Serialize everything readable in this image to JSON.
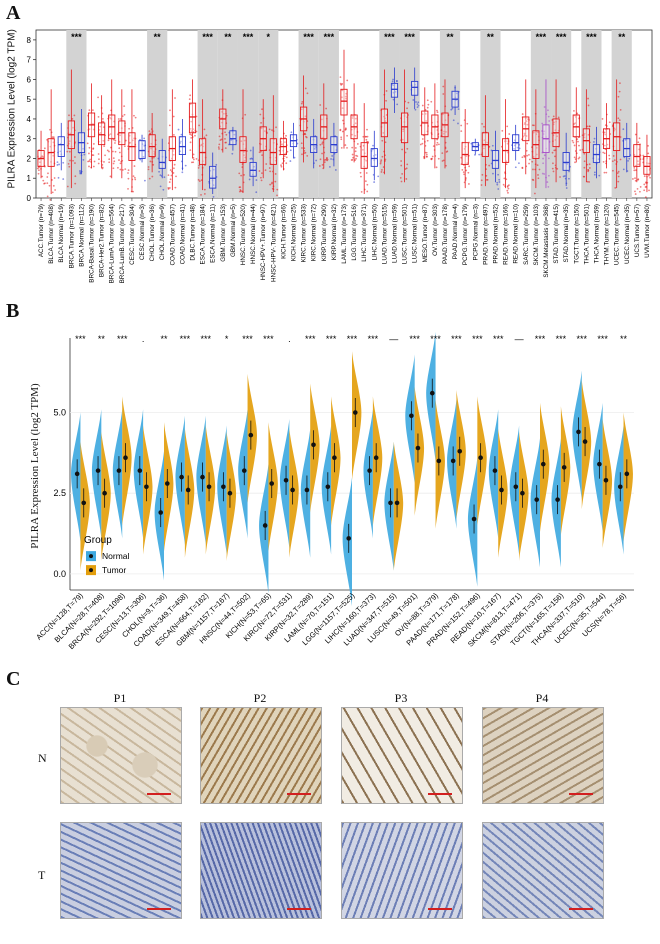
{
  "panelA": {
    "letter": "A",
    "ylabel": "PILRA Expression Level (log2 TPM)",
    "yticks": [
      0,
      1,
      2,
      3,
      4,
      5,
      6,
      7,
      8
    ],
    "groups": [
      {
        "label": "ACC.Tumor (n=79)",
        "color": "#e41a1c",
        "median": 2.0,
        "q1": 1.6,
        "q3": 2.4,
        "lo": 1.0,
        "hi": 3.4,
        "sig": ""
      },
      {
        "label": "BLCA.Tumor (n=408)",
        "color": "#e41a1c",
        "median": 2.3,
        "q1": 1.6,
        "q3": 3.0,
        "lo": 0.2,
        "hi": 5.5,
        "sig": ""
      },
      {
        "label": "BLCA.Normal (n=19)",
        "color": "#2b3ccf",
        "median": 2.7,
        "q1": 2.1,
        "q3": 3.1,
        "lo": 1.4,
        "hi": 3.8,
        "sig": ""
      },
      {
        "label": "BRCA.Tumor (n=1093)",
        "color": "#e41a1c",
        "median": 3.2,
        "q1": 2.5,
        "q3": 3.9,
        "lo": 0.5,
        "hi": 6.5,
        "sig": "***"
      },
      {
        "label": "BRCA.Normal (n=112)",
        "color": "#2b3ccf",
        "median": 2.8,
        "q1": 2.3,
        "q3": 3.3,
        "lo": 1.2,
        "hi": 4.5,
        "sig": ""
      },
      {
        "label": "BRCA-Basal.Tumor (n=190)",
        "color": "#e41a1c",
        "median": 3.7,
        "q1": 3.1,
        "q3": 4.3,
        "lo": 1.5,
        "hi": 5.8,
        "sig": ""
      },
      {
        "label": "BRCA-Her2.Tumor (n=82)",
        "color": "#e41a1c",
        "median": 3.2,
        "q1": 2.7,
        "q3": 3.8,
        "lo": 1.5,
        "hi": 5.2,
        "sig": ""
      },
      {
        "label": "BRCA-LumA.Tumor (n=564)",
        "color": "#e41a1c",
        "median": 3.6,
        "q1": 3.0,
        "q3": 4.2,
        "lo": 1.0,
        "hi": 6.0,
        "sig": ""
      },
      {
        "label": "BRCA-LumB.Tumor (n=217)",
        "color": "#e41a1c",
        "median": 3.3,
        "q1": 2.7,
        "q3": 3.9,
        "lo": 1.0,
        "hi": 5.5,
        "sig": ""
      },
      {
        "label": "CESC.Tumor (n=304)",
        "color": "#e41a1c",
        "median": 2.6,
        "q1": 1.9,
        "q3": 3.3,
        "lo": 0.3,
        "hi": 5.5,
        "sig": ""
      },
      {
        "label": "CESC.Normal (n=3)",
        "color": "#2b3ccf",
        "median": 2.4,
        "q1": 2.0,
        "q3": 2.9,
        "lo": 1.8,
        "hi": 3.2,
        "sig": ""
      },
      {
        "label": "CHOL.Tumor (n=36)",
        "color": "#e41a1c",
        "median": 2.6,
        "q1": 2.1,
        "q3": 3.2,
        "lo": 1.3,
        "hi": 4.3,
        "sig": "**"
      },
      {
        "label": "CHOL.Normal (n=9)",
        "color": "#2b3ccf",
        "median": 1.8,
        "q1": 1.5,
        "q3": 2.4,
        "lo": 1.0,
        "hi": 3.0,
        "sig": ""
      },
      {
        "label": "COAD.Tumor (n=457)",
        "color": "#e41a1c",
        "median": 2.5,
        "q1": 1.9,
        "q3": 3.1,
        "lo": 0.4,
        "hi": 5.5,
        "sig": ""
      },
      {
        "label": "COAD.Normal (n=41)",
        "color": "#2b3ccf",
        "median": 2.6,
        "q1": 2.2,
        "q3": 3.1,
        "lo": 1.4,
        "hi": 4.0,
        "sig": ""
      },
      {
        "label": "DLBC.Tumor (n=48)",
        "color": "#e41a1c",
        "median": 4.1,
        "q1": 3.3,
        "q3": 4.8,
        "lo": 2.0,
        "hi": 6.0,
        "sig": ""
      },
      {
        "label": "ESCA.Tumor (n=184)",
        "color": "#e41a1c",
        "median": 2.3,
        "q1": 1.7,
        "q3": 3.0,
        "lo": 0.4,
        "hi": 5.0,
        "sig": "***"
      },
      {
        "label": "ESCA.Normal (n=11)",
        "color": "#2b3ccf",
        "median": 1.0,
        "q1": 0.5,
        "q3": 1.6,
        "lo": 0.2,
        "hi": 2.3,
        "sig": ""
      },
      {
        "label": "GBM.Tumor (n=153)",
        "color": "#e41a1c",
        "median": 4.0,
        "q1": 3.5,
        "q3": 4.5,
        "lo": 2.3,
        "hi": 5.5,
        "sig": "**"
      },
      {
        "label": "GBM.Normal (n=5)",
        "color": "#2b3ccf",
        "median": 3.0,
        "q1": 2.7,
        "q3": 3.4,
        "lo": 2.4,
        "hi": 3.6,
        "sig": ""
      },
      {
        "label": "HNSC.Tumor (n=520)",
        "color": "#e41a1c",
        "median": 2.4,
        "q1": 1.8,
        "q3": 3.1,
        "lo": 0.3,
        "hi": 5.5,
        "sig": "***"
      },
      {
        "label": "HNSC.Normal (n=44)",
        "color": "#2b3ccf",
        "median": 1.4,
        "q1": 1.1,
        "q3": 1.8,
        "lo": 0.6,
        "hi": 2.6,
        "sig": ""
      },
      {
        "label": "HNSC-HPV+.Tumor (n=97)",
        "color": "#e41a1c",
        "median": 3.0,
        "q1": 2.4,
        "q3": 3.6,
        "lo": 1.0,
        "hi": 5.0,
        "sig": "*"
      },
      {
        "label": "HNSC-HPV-.Tumor (n=421)",
        "color": "#e41a1c",
        "median": 2.3,
        "q1": 1.7,
        "q3": 3.0,
        "lo": 0.3,
        "hi": 5.2,
        "sig": ""
      },
      {
        "label": "KICH.Tumor (n=66)",
        "color": "#e41a1c",
        "median": 2.6,
        "q1": 2.2,
        "q3": 3.0,
        "lo": 1.4,
        "hi": 3.9,
        "sig": ""
      },
      {
        "label": "KICH.Normal (n=25)",
        "color": "#2b3ccf",
        "median": 2.9,
        "q1": 2.6,
        "q3": 3.2,
        "lo": 2.0,
        "hi": 3.8,
        "sig": ""
      },
      {
        "label": "KIRC.Tumor (n=533)",
        "color": "#e41a1c",
        "median": 4.0,
        "q1": 3.4,
        "q3": 4.6,
        "lo": 1.8,
        "hi": 6.2,
        "sig": "***"
      },
      {
        "label": "KIRC.Normal (n=72)",
        "color": "#2b3ccf",
        "median": 2.7,
        "q1": 2.3,
        "q3": 3.1,
        "lo": 1.5,
        "hi": 4.0,
        "sig": ""
      },
      {
        "label": "KIRP.Tumor (n=290)",
        "color": "#e41a1c",
        "median": 3.6,
        "q1": 3.0,
        "q3": 4.2,
        "lo": 1.5,
        "hi": 5.8,
        "sig": "***"
      },
      {
        "label": "KIRP.Normal (n=32)",
        "color": "#2b3ccf",
        "median": 2.7,
        "q1": 2.3,
        "q3": 3.1,
        "lo": 1.6,
        "hi": 3.8,
        "sig": ""
      },
      {
        "label": "LAML.Tumor (n=173)",
        "color": "#e41a1c",
        "median": 4.9,
        "q1": 4.2,
        "q3": 5.5,
        "lo": 2.5,
        "hi": 7.5,
        "sig": ""
      },
      {
        "label": "LGG.Tumor (n=516)",
        "color": "#e41a1c",
        "median": 3.6,
        "q1": 3.0,
        "q3": 4.2,
        "lo": 1.8,
        "hi": 5.8,
        "sig": ""
      },
      {
        "label": "LIHC.Tumor (n=371)",
        "color": "#e41a1c",
        "median": 2.1,
        "q1": 1.5,
        "q3": 2.8,
        "lo": 0.2,
        "hi": 4.8,
        "sig": ""
      },
      {
        "label": "LIHC.Normal (n=50)",
        "color": "#2b3ccf",
        "median": 2.0,
        "q1": 1.6,
        "q3": 2.5,
        "lo": 0.9,
        "hi": 3.4,
        "sig": ""
      },
      {
        "label": "LUAD.Tumor (n=515)",
        "color": "#e41a1c",
        "median": 3.8,
        "q1": 3.1,
        "q3": 4.5,
        "lo": 1.2,
        "hi": 6.5,
        "sig": "***"
      },
      {
        "label": "LUAD.Normal (n=59)",
        "color": "#2b3ccf",
        "median": 5.5,
        "q1": 5.1,
        "q3": 5.8,
        "lo": 4.3,
        "hi": 6.6,
        "sig": ""
      },
      {
        "label": "LUSC.Tumor (n=501)",
        "color": "#e41a1c",
        "median": 3.6,
        "q1": 2.8,
        "q3": 4.3,
        "lo": 0.8,
        "hi": 6.5,
        "sig": "***"
      },
      {
        "label": "LUSC.Normal (n=51)",
        "color": "#2b3ccf",
        "median": 5.6,
        "q1": 5.2,
        "q3": 5.9,
        "lo": 4.5,
        "hi": 6.6,
        "sig": ""
      },
      {
        "label": "MESO.Tumor (n=87)",
        "color": "#e41a1c",
        "median": 3.8,
        "q1": 3.2,
        "q3": 4.4,
        "lo": 2.0,
        "hi": 5.6,
        "sig": ""
      },
      {
        "label": "OV.Tumor (n=303)",
        "color": "#e41a1c",
        "median": 3.6,
        "q1": 3.0,
        "q3": 4.2,
        "lo": 1.5,
        "hi": 5.8,
        "sig": ""
      },
      {
        "label": "PAAD.Tumor (n=178)",
        "color": "#e41a1c",
        "median": 3.7,
        "q1": 3.1,
        "q3": 4.3,
        "lo": 1.5,
        "hi": 6.0,
        "sig": "**"
      },
      {
        "label": "PAAD.Normal (n=4)",
        "color": "#2b3ccf",
        "median": 5.0,
        "q1": 4.6,
        "q3": 5.4,
        "lo": 4.2,
        "hi": 5.7,
        "sig": ""
      },
      {
        "label": "PCPG.Tumor (n=179)",
        "color": "#e41a1c",
        "median": 2.2,
        "q1": 1.7,
        "q3": 2.8,
        "lo": 0.5,
        "hi": 4.5,
        "sig": ""
      },
      {
        "label": "PCPG.Normal (n=3)",
        "color": "#2b3ccf",
        "median": 2.6,
        "q1": 2.4,
        "q3": 2.8,
        "lo": 2.2,
        "hi": 3.0,
        "sig": ""
      },
      {
        "label": "PRAD.Tumor (n=497)",
        "color": "#e41a1c",
        "median": 2.7,
        "q1": 2.1,
        "q3": 3.3,
        "lo": 0.6,
        "hi": 5.2,
        "sig": "**"
      },
      {
        "label": "PRAD.Normal (n=52)",
        "color": "#2b3ccf",
        "median": 1.9,
        "q1": 1.5,
        "q3": 2.4,
        "lo": 0.8,
        "hi": 3.4,
        "sig": ""
      },
      {
        "label": "READ.Tumor (n=166)",
        "color": "#e41a1c",
        "median": 2.4,
        "q1": 1.8,
        "q3": 3.0,
        "lo": 0.5,
        "hi": 5.0,
        "sig": ""
      },
      {
        "label": "READ.Normal (n=10)",
        "color": "#2b3ccf",
        "median": 2.8,
        "q1": 2.4,
        "q3": 3.2,
        "lo": 1.9,
        "hi": 3.7,
        "sig": ""
      },
      {
        "label": "SARC.Tumor (n=259)",
        "color": "#e41a1c",
        "median": 3.5,
        "q1": 2.9,
        "q3": 4.1,
        "lo": 1.2,
        "hi": 6.0,
        "sig": ""
      },
      {
        "label": "SKCM.Tumor (n=103)",
        "color": "#e41a1c",
        "median": 2.7,
        "q1": 2.0,
        "q3": 3.4,
        "lo": 0.5,
        "hi": 5.5,
        "sig": "***"
      },
      {
        "label": "SKCM.Metastasis (n=368)",
        "color": "#a64ac9",
        "median": 3.0,
        "q1": 2.3,
        "q3": 3.7,
        "lo": 0.5,
        "hi": 6.0,
        "sig": ""
      },
      {
        "label": "STAD.Tumor (n=415)",
        "color": "#e41a1c",
        "median": 3.3,
        "q1": 2.6,
        "q3": 4.0,
        "lo": 0.8,
        "hi": 6.0,
        "sig": "***"
      },
      {
        "label": "STAD.Normal (n=35)",
        "color": "#2b3ccf",
        "median": 1.8,
        "q1": 1.4,
        "q3": 2.3,
        "lo": 0.6,
        "hi": 3.3,
        "sig": ""
      },
      {
        "label": "TGCT.Tumor (n=150)",
        "color": "#e41a1c",
        "median": 3.6,
        "q1": 3.1,
        "q3": 4.2,
        "lo": 1.8,
        "hi": 5.6,
        "sig": ""
      },
      {
        "label": "THCA.Tumor (n=501)",
        "color": "#e41a1c",
        "median": 2.9,
        "q1": 2.3,
        "q3": 3.5,
        "lo": 0.8,
        "hi": 5.5,
        "sig": "***"
      },
      {
        "label": "THCA.Normal (n=59)",
        "color": "#2b3ccf",
        "median": 2.2,
        "q1": 1.8,
        "q3": 2.7,
        "lo": 1.0,
        "hi": 3.6,
        "sig": ""
      },
      {
        "label": "THYM.Tumor (n=120)",
        "color": "#e41a1c",
        "median": 3.0,
        "q1": 2.5,
        "q3": 3.5,
        "lo": 1.5,
        "hi": 4.8,
        "sig": ""
      },
      {
        "label": "UCEC.Tumor (n=545)",
        "color": "#e41a1c",
        "median": 3.1,
        "q1": 2.4,
        "q3": 3.8,
        "lo": 0.5,
        "hi": 6.0,
        "sig": "**"
      },
      {
        "label": "UCEC.Normal (n=35)",
        "color": "#2b3ccf",
        "median": 2.5,
        "q1": 2.1,
        "q3": 3.0,
        "lo": 1.3,
        "hi": 3.8,
        "sig": ""
      },
      {
        "label": "UCS.Tumor (n=57)",
        "color": "#e41a1c",
        "median": 2.1,
        "q1": 1.6,
        "q3": 2.7,
        "lo": 0.8,
        "hi": 3.8,
        "sig": ""
      },
      {
        "label": "UVM.Tumor (n=80)",
        "color": "#e41a1c",
        "median": 1.6,
        "q1": 1.2,
        "q3": 2.1,
        "lo": 0.3,
        "hi": 3.2,
        "sig": ""
      }
    ],
    "shaded_ranges": [
      [
        3,
        4
      ],
      [
        11,
        12
      ],
      [
        16,
        17
      ],
      [
        18,
        19
      ],
      [
        20,
        21
      ],
      [
        22,
        23
      ],
      [
        26,
        27
      ],
      [
        28,
        29
      ],
      [
        34,
        35
      ],
      [
        36,
        37
      ],
      [
        40,
        41
      ],
      [
        44,
        45
      ],
      [
        49,
        50
      ],
      [
        51,
        52
      ],
      [
        54,
        55
      ],
      [
        57,
        58
      ]
    ]
  },
  "panelB": {
    "letter": "B",
    "ylabel": "PILRA Expression Level (log2 TPM)",
    "yticks": [
      "0.0",
      "2.5",
      "5.0"
    ],
    "legend": {
      "title": "Group",
      "items": [
        {
          "label": "Normal",
          "color": "#3fa9e0"
        },
        {
          "label": "Tumor",
          "color": "#e39e0c"
        }
      ]
    },
    "categories": [
      {
        "label": "ACC(N=128,T=79)",
        "n": 3.1,
        "t": 2.2,
        "sig": "***"
      },
      {
        "label": "BLCA(N=28,T=408)",
        "n": 3.2,
        "t": 2.5,
        "sig": "**"
      },
      {
        "label": "BRCA(N=292,T=1098)",
        "n": 3.2,
        "t": 3.6,
        "sig": "***"
      },
      {
        "label": "CESC(N=13,T=306)",
        "n": 3.2,
        "t": 2.7,
        "sig": "."
      },
      {
        "label": "CHOL(N=9,T=36)",
        "n": 1.9,
        "t": 2.8,
        "sig": "**"
      },
      {
        "label": "COAD(N=349,T=458)",
        "n": 3.0,
        "t": 2.6,
        "sig": "***"
      },
      {
        "label": "ESCA(N=664,T=162)",
        "n": 3.0,
        "t": 2.7,
        "sig": "***"
      },
      {
        "label": "GBM(N=1157,T=167)",
        "n": 2.7,
        "t": 2.5,
        "sig": "*"
      },
      {
        "label": "HNSC(N=44,T=502)",
        "n": 3.2,
        "t": 4.3,
        "sig": "***"
      },
      {
        "label": "KICH(N=53,T=65)",
        "n": 1.5,
        "t": 2.8,
        "sig": "***"
      },
      {
        "label": "KIRC(N=72,T=531)",
        "n": 2.9,
        "t": 2.6,
        "sig": "."
      },
      {
        "label": "KIRP(N=32,T=289)",
        "n": 2.6,
        "t": 4.0,
        "sig": "***"
      },
      {
        "label": "LAML(N=70,T=151)",
        "n": 2.7,
        "t": 3.6,
        "sig": "***"
      },
      {
        "label": "LGG(N=1157,T=525)",
        "n": 1.1,
        "t": 5.0,
        "sig": "***"
      },
      {
        "label": "LIHC(N=160,T=373)",
        "n": 3.2,
        "t": 3.6,
        "sig": "***"
      },
      {
        "label": "LUAD(N=347,T=515)",
        "n": 2.2,
        "t": 2.2,
        "sig": "—"
      },
      {
        "label": "LUSC(N=49,T=501)",
        "n": 4.9,
        "t": 3.9,
        "sig": "***"
      },
      {
        "label": "OV(N=88,T=379)",
        "n": 5.6,
        "t": 3.5,
        "sig": "***"
      },
      {
        "label": "PAAD(N=171,T=178)",
        "n": 3.5,
        "t": 3.8,
        "sig": "***"
      },
      {
        "label": "PRAD(N=152,T=496)",
        "n": 1.7,
        "t": 3.6,
        "sig": "***"
      },
      {
        "label": "READ(N=10,T=167)",
        "n": 3.2,
        "t": 2.6,
        "sig": "***"
      },
      {
        "label": "SKCM(N=813,T=471)",
        "n": 2.7,
        "t": 2.5,
        "sig": "—"
      },
      {
        "label": "STAD(N=206,T=375)",
        "n": 2.3,
        "t": 3.4,
        "sig": "***"
      },
      {
        "label": "TGCT(N=165,T=156)",
        "n": 2.3,
        "t": 3.3,
        "sig": "***"
      },
      {
        "label": "THCA(N=337,T=510)",
        "n": 4.4,
        "t": 4.1,
        "sig": "***"
      },
      {
        "label": "UCEC(N=35,T=544)",
        "n": 3.4,
        "t": 2.9,
        "sig": "***"
      },
      {
        "label": "UCS(N=78,T=56)",
        "n": 2.7,
        "t": 3.1,
        "sig": "**"
      }
    ]
  },
  "panelC": {
    "letter": "C",
    "columns": [
      "P1",
      "P2",
      "P3",
      "P4"
    ],
    "rows": [
      "N",
      "T"
    ]
  }
}
